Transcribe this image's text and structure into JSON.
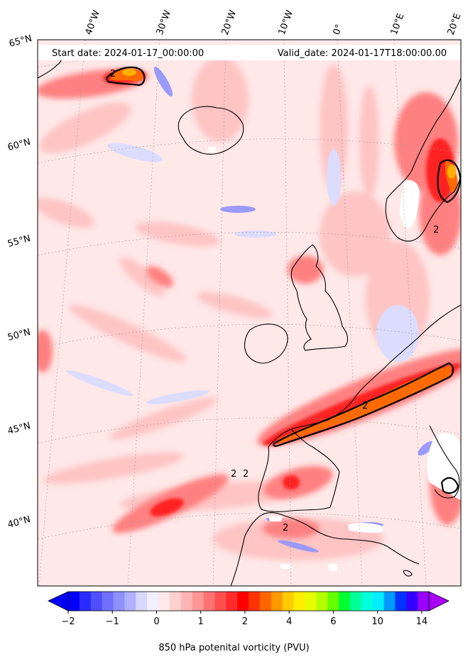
{
  "header": {
    "start_date": "Start date: 2024-01-17_00:00:00",
    "valid_date": "Valid_date: 2024-01-17T18:00:00.00"
  },
  "longitude_labels": [
    "40°W",
    "30°W",
    "20°W",
    "10°W",
    "0°",
    "10°E",
    "20°E"
  ],
  "latitude_labels": [
    "65°N",
    "60°N",
    "55°N",
    "50°N",
    "45°N",
    "40°N"
  ],
  "contour_labels": [
    "2",
    "2",
    "2",
    "2",
    "2",
    "2"
  ],
  "colorbar": {
    "label": "850 hPa potenital vorticity (PVU)",
    "ticks": [
      "−2",
      "−1",
      "0",
      "1",
      "2",
      "4",
      "6",
      "10",
      "14"
    ],
    "colors": [
      "#0000ff",
      "#2a2aff",
      "#5050ff",
      "#7070ff",
      "#9090ff",
      "#b0b0ff",
      "#d8d8ff",
      "#f0f0ff",
      "#ffeaea",
      "#ffd0d0",
      "#ffb4b4",
      "#ff9696",
      "#ff7272",
      "#ff5050",
      "#ff2a2a",
      "#ff0000",
      "#ff3300",
      "#ff6600",
      "#ff9900",
      "#ffcc00",
      "#ffee00",
      "#e6ff00",
      "#b4ff00",
      "#66ff00",
      "#00ff33",
      "#00ff99",
      "#00ffdd",
      "#00eeff",
      "#0099ff",
      "#0033ff",
      "#3300ff",
      "#9900ff"
    ],
    "under_color": "#0000ff",
    "over_color": "#a800ff"
  },
  "theme": {
    "background_field": "#ffe6e6",
    "strong_band": "#ff3a3a",
    "core": "#ff5a00",
    "negative": "#8888ff"
  }
}
